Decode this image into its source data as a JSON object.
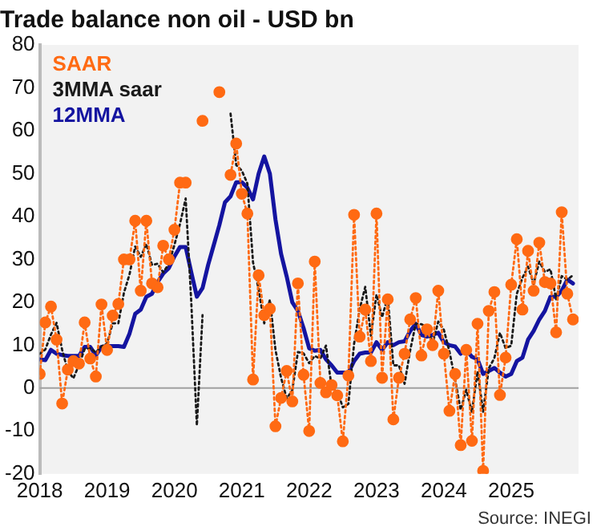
{
  "chart_data": {
    "type": "line",
    "title": "Trade balance non oil - USD bn",
    "annotations": [
      "Source: INEGI"
    ],
    "x": [
      2018,
      2018.083,
      2018.167,
      2018.25,
      2018.333,
      2018.417,
      2018.5,
      2018.583,
      2018.667,
      2018.75,
      2018.833,
      2018.917,
      2019,
      2019.083,
      2019.167,
      2019.25,
      2019.333,
      2019.417,
      2019.5,
      2019.583,
      2019.667,
      2019.75,
      2019.833,
      2019.917,
      2020,
      2020.083,
      2020.167,
      2020.25,
      2020.333,
      2020.417,
      2020.5,
      2020.583,
      2020.667,
      2020.75,
      2020.833,
      2020.917,
      2021,
      2021.083,
      2021.167,
      2021.25,
      2021.333,
      2021.417,
      2021.5,
      2021.583,
      2021.667,
      2021.75,
      2021.833,
      2021.917,
      2022,
      2022.083,
      2022.167,
      2022.25,
      2022.333,
      2022.417,
      2022.5,
      2022.583,
      2022.667,
      2022.75,
      2022.833,
      2022.917,
      2023,
      2023.083,
      2023.167,
      2023.25,
      2023.333,
      2023.417,
      2023.5,
      2023.583,
      2023.667,
      2023.75,
      2023.833,
      2023.917,
      2024,
      2024.083,
      2024.167,
      2024.25,
      2024.333,
      2024.417,
      2024.5,
      2024.583,
      2024.667,
      2024.75,
      2024.833,
      2024.917,
      2025,
      2025.083,
      2025.167,
      2025.25,
      2025.333,
      2025.417,
      2025.5,
      2025.583,
      2025.667,
      2025.75,
      2025.833,
      2025.917
    ],
    "series": [
      {
        "name": "SAAR",
        "color": "#ff6a13",
        "marker": "circle",
        "line_style": "dotted",
        "values": [
          3.3,
          15.3,
          19,
          11.3,
          -3.6,
          4.3,
          6.3,
          5.7,
          15.3,
          6.9,
          2.7,
          19.5,
          8.9,
          16.9,
          19.6,
          30,
          30,
          39,
          22.7,
          39,
          24.4,
          23.5,
          33.2,
          30,
          36.9,
          47.9,
          47.9,
          null,
          null,
          62.3,
          null,
          null,
          69,
          null,
          49.7,
          57,
          45.3,
          40.7,
          2,
          26.3,
          17,
          18.5,
          -8.9,
          -2.3,
          4,
          -3.1,
          24.4,
          3.1,
          -10,
          29.5,
          1.2,
          -1,
          0.7,
          -1.7,
          -12.4,
          2.9,
          40.4,
          12,
          18.3,
          6.3,
          40.7,
          2.4,
          20.7,
          -7.3,
          2.4,
          8,
          16,
          21,
          7.6,
          13.7,
          10,
          22.7,
          8,
          -5.3,
          3.3,
          -13.3,
          8.9,
          -12.3,
          15,
          -19.3,
          18,
          22.4,
          -1.6,
          7.1,
          24.1,
          34.7,
          18.3,
          32,
          22.7,
          33.9,
          24.7,
          24.4,
          13,
          41,
          22,
          16
        ]
      },
      {
        "name": "3MMA saar",
        "color": "#1a1a1a",
        "marker": "none",
        "line_style": "dotted",
        "values": [
          8,
          9,
          12.5,
          15.2,
          8.9,
          4,
          2.3,
          5.4,
          9.1,
          9.3,
          8.3,
          9.7,
          10.4,
          15.1,
          15.1,
          22.2,
          26.5,
          33,
          30.6,
          33.6,
          28.7,
          29,
          27,
          28.9,
          33.4,
          38.3,
          44.2,
          20,
          -8.7,
          17,
          null,
          null,
          null,
          null,
          64,
          52,
          50.7,
          47.7,
          29.3,
          23,
          15.1,
          20.6,
          8.9,
          2.4,
          -2.4,
          -0.5,
          8.4,
          8.1,
          5.8,
          7.5,
          6.9,
          9.9,
          0.3,
          -0.7,
          -4.5,
          -3.7,
          10.3,
          18.4,
          23.6,
          12.2,
          21.8,
          16.5,
          21.3,
          5.3,
          5.3,
          1,
          8.8,
          15,
          14.9,
          14.1,
          10.4,
          15.5,
          13.6,
          8.5,
          2,
          -5.1,
          -0.4,
          -5.6,
          3.9,
          -5.5,
          4.6,
          7,
          12.9,
          9.3,
          9.9,
          22,
          25.7,
          28.3,
          24.3,
          29.5,
          27.1,
          27.7,
          20.7,
          26.1,
          25.3,
          26.3
        ]
      },
      {
        "name": "12MMA",
        "color": "#1414a0",
        "marker": "none",
        "line_style": "solid",
        "values": [
          6.7,
          6.5,
          8.9,
          8,
          7.7,
          7.5,
          7.5,
          7.5,
          9.6,
          9.6,
          7.6,
          9.6,
          9.8,
          9.8,
          9.8,
          9.6,
          12.7,
          17.3,
          18.3,
          21.3,
          22,
          24.7,
          26.7,
          28,
          30.7,
          32.9,
          32.9,
          27,
          21.3,
          23.3,
          28.7,
          33.3,
          38,
          43.3,
          44.7,
          48,
          48,
          46.7,
          44,
          50,
          54,
          50,
          39.3,
          31.3,
          26,
          20,
          18,
          14,
          9.3,
          8.7,
          8.9,
          6.7,
          5.3,
          3.6,
          3.6,
          3.6,
          6.3,
          8,
          8.3,
          8.3,
          10.7,
          8.9,
          10.7,
          10,
          10.7,
          10.9,
          13.3,
          15,
          12.4,
          12,
          12.4,
          12.9,
          10.7,
          10,
          9.7,
          8,
          8.9,
          7.3,
          6.7,
          3.3,
          4,
          4.7,
          3.6,
          2.7,
          3.3,
          6.3,
          7.1,
          11.3,
          13.3,
          16,
          18,
          21.3,
          21.3,
          22.7,
          25.3,
          24.4
        ]
      }
    ],
    "xlim": [
      2018,
      2026
    ],
    "xticks": [
      2018,
      2019,
      2020,
      2021,
      2022,
      2023,
      2024,
      2025
    ],
    "ylim": [
      -20,
      80
    ],
    "yticks": [
      -20,
      -10,
      0,
      10,
      20,
      30,
      40,
      50,
      60,
      70,
      80
    ],
    "ref_lines": [
      {
        "axis": "y",
        "value": 0,
        "color": "#a0a0a0"
      }
    ],
    "legend": "top left",
    "grid": false
  }
}
